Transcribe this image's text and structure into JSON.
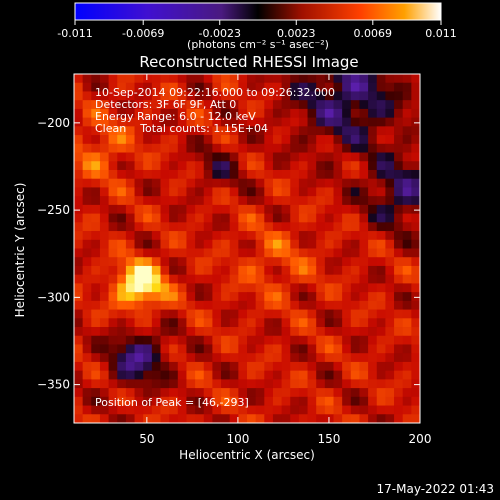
{
  "chart_data": {
    "type": "heatmap",
    "title": "Reconstructed RHESSI Image",
    "xlabel": "Heliocentric X (arcsec)",
    "ylabel": "Heliocentric Y (arcsec)",
    "xlim": [
      10,
      200
    ],
    "ylim": [
      -372,
      -172
    ],
    "xticks": [
      50,
      100,
      150,
      200
    ],
    "yticks": [
      -350,
      -300,
      -250,
      -200
    ],
    "colorbar": {
      "range": [
        -0.011,
        0.011
      ],
      "tick_values": [
        -0.011,
        -0.0069,
        -0.0023,
        0.0023,
        0.0069,
        0.011
      ],
      "tick_labels": [
        "-0.011",
        "-0.0069",
        "-0.0023",
        "0.0023",
        "0.0069",
        "0.011"
      ],
      "units_label": "(photons cm⁻² s⁻¹ asec⁻²)"
    },
    "annotations": [
      "10-Sep-2014 09:22:16.000 to 09:26:32.000",
      "Detectors: 3F 6F 9F, Att 0",
      "Energy Range: 6.0 - 12.0 keV",
      "Clean    Total counts: 1.15E+04"
    ],
    "peak_label": "Position of Peak = [46,-293]",
    "peak": [
      46,
      -293
    ],
    "colors": {
      "neg_low": "#0000ff",
      "neg_mid": "#5a1eb4",
      "zero": "#000000",
      "pos_mid": "#d02000",
      "pos_high": "#ff8000",
      "max": "#ffffc0"
    }
  },
  "footer": {
    "timestamp": "17-May-2022 01:43"
  }
}
